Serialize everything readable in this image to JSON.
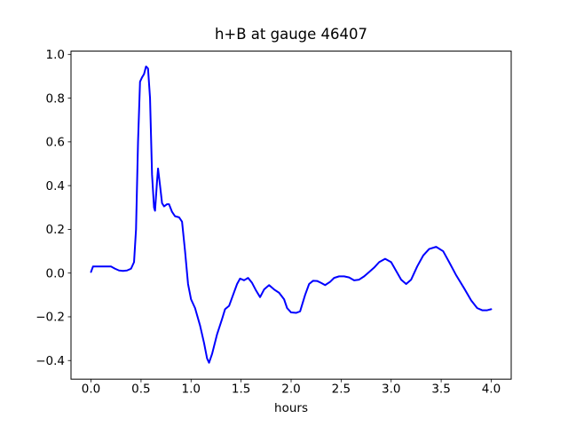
{
  "figure": {
    "background": "#ffffff",
    "frame_color": "#000000"
  },
  "chart_data": {
    "type": "line",
    "title": "h+B at gauge 46407",
    "xlabel": "hours",
    "ylabel": "",
    "grid": false,
    "legend_position": "none",
    "xlim": [
      -0.2,
      4.2
    ],
    "ylim": [
      -0.485,
      1.015
    ],
    "x_ticks": {
      "values": [
        0.0,
        0.5,
        1.0,
        1.5,
        2.0,
        2.5,
        3.0,
        3.5,
        4.0
      ],
      "labels": [
        "0.0",
        "0.5",
        "1.0",
        "1.5",
        "2.0",
        "2.5",
        "3.0",
        "3.5",
        "4.0"
      ]
    },
    "y_ticks": {
      "values": [
        -0.4,
        -0.2,
        0.0,
        0.2,
        0.4,
        0.6,
        0.8,
        1.0
      ],
      "labels": [
        "−0.4",
        "−0.2",
        "0.0",
        "0.2",
        "0.4",
        "0.6",
        "0.8",
        "1.0"
      ]
    },
    "series": [
      {
        "name": "h+B",
        "color": "#0000ff",
        "line_width": 2,
        "x": [
          0.0,
          0.02,
          0.06,
          0.1,
          0.15,
          0.2,
          0.24,
          0.28,
          0.32,
          0.36,
          0.4,
          0.43,
          0.45,
          0.47,
          0.49,
          0.51,
          0.53,
          0.55,
          0.57,
          0.59,
          0.61,
          0.63,
          0.64,
          0.66,
          0.67,
          0.69,
          0.71,
          0.73,
          0.76,
          0.78,
          0.81,
          0.84,
          0.88,
          0.91,
          0.94,
          0.97,
          1.0,
          1.04,
          1.09,
          1.13,
          1.16,
          1.18,
          1.21,
          1.26,
          1.31,
          1.34,
          1.38,
          1.42,
          1.46,
          1.49,
          1.53,
          1.57,
          1.61,
          1.65,
          1.69,
          1.73,
          1.78,
          1.83,
          1.88,
          1.93,
          1.96,
          2.0,
          2.05,
          2.09,
          2.14,
          2.18,
          2.22,
          2.26,
          2.3,
          2.34,
          2.39,
          2.43,
          2.48,
          2.53,
          2.58,
          2.63,
          2.68,
          2.73,
          2.78,
          2.83,
          2.88,
          2.94,
          3.0,
          3.05,
          3.1,
          3.15,
          3.2,
          3.26,
          3.32,
          3.38,
          3.45,
          3.52,
          3.58,
          3.65,
          3.73,
          3.8,
          3.86,
          3.91,
          3.96,
          4.0
        ],
        "y": [
          0.005,
          0.03,
          0.03,
          0.03,
          0.03,
          0.03,
          0.02,
          0.012,
          0.01,
          0.012,
          0.02,
          0.05,
          0.2,
          0.6,
          0.875,
          0.895,
          0.91,
          0.945,
          0.935,
          0.8,
          0.45,
          0.3,
          0.285,
          0.42,
          0.478,
          0.4,
          0.32,
          0.305,
          0.315,
          0.315,
          0.28,
          0.26,
          0.255,
          0.235,
          0.1,
          -0.05,
          -0.12,
          -0.16,
          -0.24,
          -0.32,
          -0.39,
          -0.41,
          -0.37,
          -0.28,
          -0.21,
          -0.165,
          -0.15,
          -0.1,
          -0.05,
          -0.025,
          -0.033,
          -0.022,
          -0.045,
          -0.08,
          -0.11,
          -0.075,
          -0.055,
          -0.075,
          -0.09,
          -0.12,
          -0.16,
          -0.18,
          -0.182,
          -0.175,
          -0.1,
          -0.05,
          -0.035,
          -0.036,
          -0.045,
          -0.055,
          -0.04,
          -0.022,
          -0.015,
          -0.015,
          -0.02,
          -0.033,
          -0.03,
          -0.015,
          0.005,
          0.025,
          0.05,
          0.065,
          0.05,
          0.01,
          -0.03,
          -0.05,
          -0.03,
          0.03,
          0.08,
          0.11,
          0.12,
          0.1,
          0.05,
          -0.01,
          -0.07,
          -0.125,
          -0.16,
          -0.17,
          -0.17,
          -0.165
        ]
      }
    ]
  }
}
